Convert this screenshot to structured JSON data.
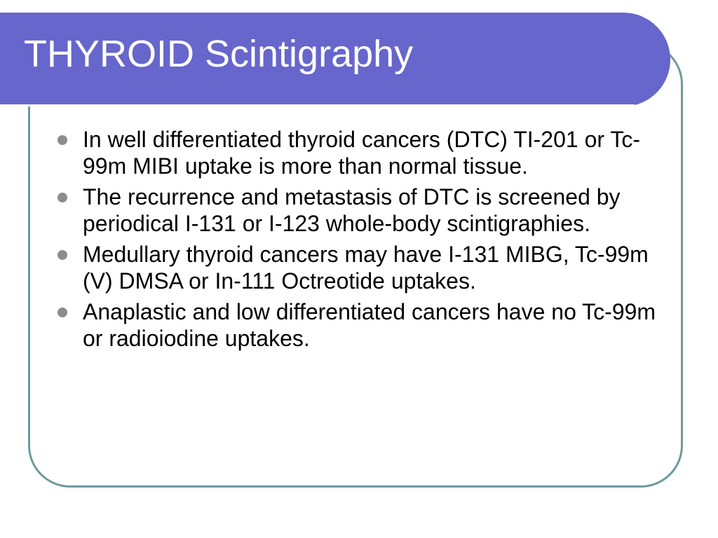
{
  "slide": {
    "title": "THYROID Scintigraphy",
    "bullets": [
      "In well differentiated thyroid cancers (DTC) TI-201 or Tc-99m MIBI uptake is more than normal tissue.",
      "The recurrence and metastasis of DTC is screened by periodical I-131 or I-123 whole-body scintigraphies.",
      "Medullary thyroid cancers may have I-131 MIBG, Tc-99m (V) DMSA or In-111 Octreotide uptakes.",
      "Anaplastic and low differentiated cancers have no Tc-99m or radioiodine uptakes."
    ]
  },
  "colors": {
    "title_band": "#6666cc",
    "frame_border": "#6d9a9c",
    "bullet_dot": "#8c8c8c",
    "title_text": "#ffffff",
    "body_text": "#000000"
  }
}
